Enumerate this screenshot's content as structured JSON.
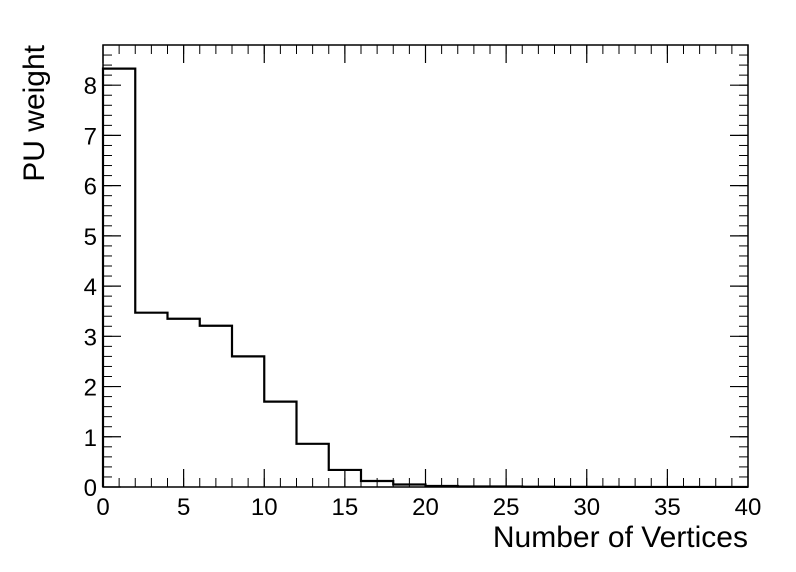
{
  "chart_data": {
    "type": "histogram",
    "xlabel": "Number of Vertices",
    "ylabel": "PU weight",
    "xlim": [
      0,
      40
    ],
    "ylim": [
      0,
      8.8
    ],
    "x_ticks": [
      0,
      5,
      10,
      15,
      20,
      25,
      30,
      35,
      40
    ],
    "y_ticks": [
      0,
      1,
      2,
      3,
      4,
      5,
      6,
      7,
      8
    ],
    "x_minor_step": 1,
    "y_minor_step": 0.2,
    "grid": false,
    "bin_edges": [
      0,
      2,
      4,
      6,
      8,
      10,
      12,
      14,
      16,
      18,
      20,
      22,
      24,
      26,
      28,
      30,
      32,
      34,
      36,
      38,
      40
    ],
    "values": [
      8.33,
      3.47,
      3.35,
      3.21,
      2.6,
      1.7,
      0.86,
      0.34,
      0.12,
      0.05,
      0.02,
      0.01,
      0.01,
      0.005,
      0.003,
      0.002,
      0.001,
      0.001,
      0.001,
      0.001
    ],
    "line_color": "#000000"
  }
}
